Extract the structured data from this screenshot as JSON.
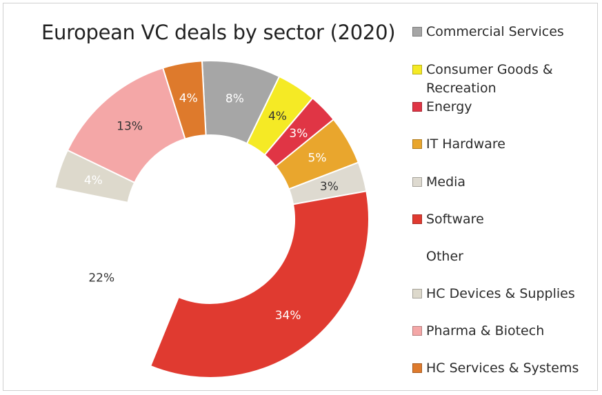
{
  "chart_data": {
    "type": "pie",
    "title": "European VC deals by sector (2020)",
    "slices": [
      {
        "label": "Commercial Services",
        "value": 8,
        "display": "8%",
        "color": "#a6a6a6",
        "label_color": "#ffffff"
      },
      {
        "label": "Consumer Goods & Recreation",
        "value": 4,
        "display": "4%",
        "color": "#f5ea25",
        "label_color": "#333333"
      },
      {
        "label": "Energy",
        "value": 3,
        "display": "3%",
        "color": "#e03545",
        "label_color": "#ffffff"
      },
      {
        "label": "IT Hardware",
        "value": 5,
        "display": "5%",
        "color": "#e9a62d",
        "label_color": "#ffffff"
      },
      {
        "label": "Media",
        "value": 3,
        "display": "3%",
        "color": "#dedad0",
        "label_color": "#333333"
      },
      {
        "label": "Software",
        "value": 34,
        "display": "34%",
        "color": "#e03a30",
        "label_color": "#ffffff"
      },
      {
        "label": "Other",
        "value": 22,
        "display": "22%",
        "color": "#ffffff",
        "label_color": "#333333"
      },
      {
        "label": "HC Devices & Supplies",
        "value": 4,
        "display": "4%",
        "color": "#ddd9cc",
        "label_color": "#ffffff"
      },
      {
        "label": "Pharma & Biotech",
        "value": 13,
        "display": "13%",
        "color": "#f4a7a7",
        "label_color": "#333333"
      },
      {
        "label": "HC Services & Systems",
        "value": 4,
        "display": "4%",
        "color": "#de7a2c",
        "label_color": "#ffffff"
      }
    ],
    "legend_position": "right"
  }
}
